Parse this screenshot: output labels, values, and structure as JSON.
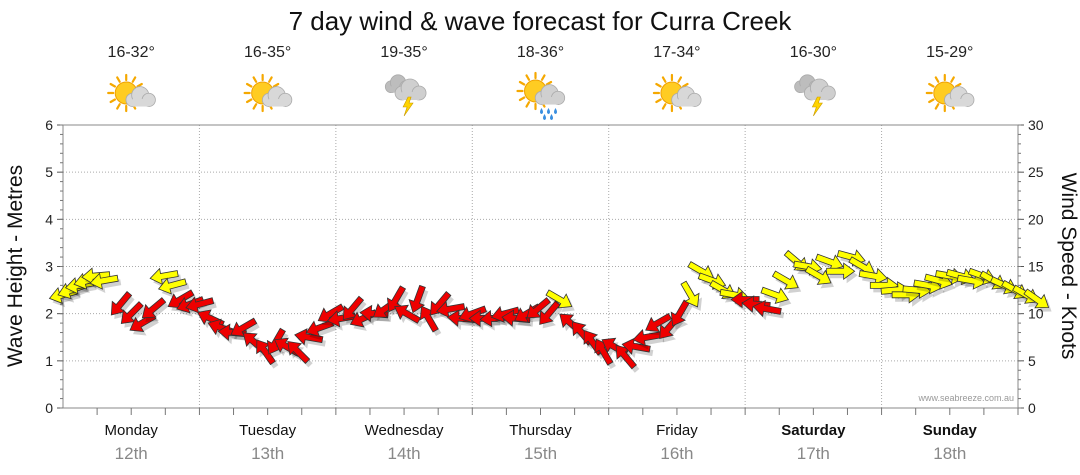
{
  "title": "7 day wind & wave forecast for Curra Creek",
  "credit": "www.seabreeze.com.au",
  "chart_data": {
    "type": "line",
    "title": "7 day wind & wave forecast for Curra Creek",
    "y_left": {
      "label": "Wave Height - Metres",
      "lim": [
        0,
        6
      ],
      "ticks": [
        0,
        1,
        2,
        3,
        4,
        5,
        6
      ]
    },
    "y_right": {
      "label": "Wind Speed - Knots",
      "lim": [
        0,
        30
      ],
      "ticks": [
        0,
        5,
        10,
        15,
        20,
        25,
        30
      ]
    },
    "grid": true,
    "days": [
      {
        "name": "Monday",
        "date": "12th",
        "temp": "16-32°",
        "weather": "partly-cloudy-icon",
        "bold": false
      },
      {
        "name": "Tuesday",
        "date": "13th",
        "temp": "16-35°",
        "weather": "partly-cloudy-icon",
        "bold": false
      },
      {
        "name": "Wednesday",
        "date": "14th",
        "temp": "19-35°",
        "weather": "thunderstorm-icon",
        "bold": false
      },
      {
        "name": "Thursday",
        "date": "15th",
        "temp": "18-36°",
        "weather": "sun-shower-icon",
        "bold": false
      },
      {
        "name": "Friday",
        "date": "16th",
        "temp": "17-34°",
        "weather": "partly-cloudy-icon",
        "bold": false
      },
      {
        "name": "Saturday",
        "date": "17th",
        "temp": "16-30°",
        "weather": "thunderstorm-icon",
        "bold": true
      },
      {
        "name": "Sunday",
        "date": "18th",
        "temp": "15-29°",
        "weather": "partly-cloudy-icon",
        "bold": true
      }
    ],
    "wind_colors": {
      "strong": "#ee0000",
      "moderate": "#ffff00"
    },
    "wind": [
      {
        "day": 0.0,
        "knots": 12.0,
        "dir_deg": 75,
        "color": "moderate"
      },
      {
        "day": 0.06,
        "knots": 12.5,
        "dir_deg": 70,
        "color": "moderate"
      },
      {
        "day": 0.12,
        "knots": 13.0,
        "dir_deg": 80,
        "color": "moderate"
      },
      {
        "day": 0.18,
        "knots": 13.5,
        "dir_deg": 75,
        "color": "moderate"
      },
      {
        "day": 0.24,
        "knots": 14.0,
        "dir_deg": 85,
        "color": "moderate"
      },
      {
        "day": 0.3,
        "knots": 13.5,
        "dir_deg": 80,
        "color": "moderate"
      },
      {
        "day": 0.42,
        "knots": 11.0,
        "dir_deg": 40,
        "color": "strong"
      },
      {
        "day": 0.5,
        "knots": 10.0,
        "dir_deg": 45,
        "color": "strong"
      },
      {
        "day": 0.58,
        "knots": 9.0,
        "dir_deg": 60,
        "color": "strong"
      },
      {
        "day": 0.66,
        "knots": 10.5,
        "dir_deg": 50,
        "color": "strong"
      },
      {
        "day": 0.74,
        "knots": 14.0,
        "dir_deg": 80,
        "color": "moderate"
      },
      {
        "day": 0.8,
        "knots": 13.0,
        "dir_deg": 75,
        "color": "moderate"
      },
      {
        "day": 0.86,
        "knots": 11.5,
        "dir_deg": 60,
        "color": "strong"
      },
      {
        "day": 0.93,
        "knots": 11.0,
        "dir_deg": 70,
        "color": "strong"
      },
      {
        "day": 1.0,
        "knots": 11.0,
        "dir_deg": 75,
        "color": "strong"
      },
      {
        "day": 1.08,
        "knots": 9.5,
        "dir_deg": 115,
        "color": "strong"
      },
      {
        "day": 1.16,
        "knots": 8.5,
        "dir_deg": 110,
        "color": "strong"
      },
      {
        "day": 1.24,
        "knots": 8.0,
        "dir_deg": 95,
        "color": "strong"
      },
      {
        "day": 1.32,
        "knots": 8.5,
        "dir_deg": 60,
        "color": "strong"
      },
      {
        "day": 1.4,
        "knots": 7.0,
        "dir_deg": 130,
        "color": "strong"
      },
      {
        "day": 1.48,
        "knots": 6.0,
        "dir_deg": 145,
        "color": "strong"
      },
      {
        "day": 1.56,
        "knots": 7.0,
        "dir_deg": 30,
        "color": "strong"
      },
      {
        "day": 1.64,
        "knots": 6.5,
        "dir_deg": 120,
        "color": "strong"
      },
      {
        "day": 1.72,
        "knots": 6.0,
        "dir_deg": 135,
        "color": "strong"
      },
      {
        "day": 1.8,
        "knots": 7.5,
        "dir_deg": 100,
        "color": "strong"
      },
      {
        "day": 1.88,
        "knots": 8.5,
        "dir_deg": 70,
        "color": "strong"
      },
      {
        "day": 1.96,
        "knots": 10.0,
        "dir_deg": 60,
        "color": "strong"
      },
      {
        "day": 2.04,
        "knots": 9.5,
        "dir_deg": 80,
        "color": "strong"
      },
      {
        "day": 2.12,
        "knots": 10.5,
        "dir_deg": 40,
        "color": "strong"
      },
      {
        "day": 2.2,
        "knots": 9.5,
        "dir_deg": 65,
        "color": "strong"
      },
      {
        "day": 2.28,
        "knots": 10.0,
        "dir_deg": 95,
        "color": "strong"
      },
      {
        "day": 2.36,
        "knots": 10.5,
        "dir_deg": 55,
        "color": "strong"
      },
      {
        "day": 2.44,
        "knots": 11.5,
        "dir_deg": 30,
        "color": "strong"
      },
      {
        "day": 2.52,
        "knots": 10.0,
        "dir_deg": 120,
        "color": "strong"
      },
      {
        "day": 2.6,
        "knots": 11.5,
        "dir_deg": 20,
        "color": "strong"
      },
      {
        "day": 2.68,
        "knots": 9.5,
        "dir_deg": 150,
        "color": "strong"
      },
      {
        "day": 2.76,
        "knots": 11.0,
        "dir_deg": 40,
        "color": "strong"
      },
      {
        "day": 2.84,
        "knots": 10.5,
        "dir_deg": 80,
        "color": "strong"
      },
      {
        "day": 2.92,
        "knots": 9.5,
        "dir_deg": 95,
        "color": "strong"
      },
      {
        "day": 3.0,
        "knots": 10.0,
        "dir_deg": 70,
        "color": "strong"
      },
      {
        "day": 3.08,
        "knots": 9.5,
        "dir_deg": 90,
        "color": "strong"
      },
      {
        "day": 3.16,
        "knots": 9.5,
        "dir_deg": 85,
        "color": "strong"
      },
      {
        "day": 3.24,
        "knots": 10.0,
        "dir_deg": 75,
        "color": "strong"
      },
      {
        "day": 3.32,
        "knots": 9.5,
        "dir_deg": 95,
        "color": "strong"
      },
      {
        "day": 3.4,
        "knots": 10.0,
        "dir_deg": 60,
        "color": "strong"
      },
      {
        "day": 3.48,
        "knots": 10.5,
        "dir_deg": 50,
        "color": "strong"
      },
      {
        "day": 3.56,
        "knots": 10.0,
        "dir_deg": 40,
        "color": "strong"
      },
      {
        "day": 3.64,
        "knots": 11.5,
        "dir_deg": 300,
        "color": "moderate"
      },
      {
        "day": 3.72,
        "knots": 9.0,
        "dir_deg": 130,
        "color": "strong"
      },
      {
        "day": 3.8,
        "knots": 8.0,
        "dir_deg": 140,
        "color": "strong"
      },
      {
        "day": 3.88,
        "knots": 7.0,
        "dir_deg": 145,
        "color": "strong"
      },
      {
        "day": 3.96,
        "knots": 6.0,
        "dir_deg": 150,
        "color": "strong"
      },
      {
        "day": 4.04,
        "knots": 6.5,
        "dir_deg": 120,
        "color": "strong"
      },
      {
        "day": 4.12,
        "knots": 5.5,
        "dir_deg": 140,
        "color": "strong"
      },
      {
        "day": 4.2,
        "knots": 6.5,
        "dir_deg": 100,
        "color": "strong"
      },
      {
        "day": 4.28,
        "knots": 7.5,
        "dir_deg": 80,
        "color": "strong"
      },
      {
        "day": 4.36,
        "knots": 9.0,
        "dir_deg": 60,
        "color": "strong"
      },
      {
        "day": 4.44,
        "knots": 8.5,
        "dir_deg": 40,
        "color": "strong"
      },
      {
        "day": 4.52,
        "knots": 10.0,
        "dir_deg": 30,
        "color": "strong"
      },
      {
        "day": 4.6,
        "knots": 12.0,
        "dir_deg": 330,
        "color": "moderate"
      },
      {
        "day": 4.68,
        "knots": 14.5,
        "dir_deg": 300,
        "color": "moderate"
      },
      {
        "day": 4.76,
        "knots": 13.5,
        "dir_deg": 290,
        "color": "moderate"
      },
      {
        "day": 4.84,
        "knots": 12.5,
        "dir_deg": 300,
        "color": "moderate"
      },
      {
        "day": 4.92,
        "knots": 12.0,
        "dir_deg": 280,
        "color": "moderate"
      },
      {
        "day": 5.0,
        "knots": 11.5,
        "dir_deg": 90,
        "color": "strong"
      },
      {
        "day": 5.08,
        "knots": 11.0,
        "dir_deg": 95,
        "color": "strong"
      },
      {
        "day": 5.16,
        "knots": 10.5,
        "dir_deg": 100,
        "color": "strong"
      },
      {
        "day": 5.22,
        "knots": 12.0,
        "dir_deg": 290,
        "color": "moderate"
      },
      {
        "day": 5.3,
        "knots": 13.5,
        "dir_deg": 300,
        "color": "moderate"
      },
      {
        "day": 5.38,
        "knots": 15.5,
        "dir_deg": 310,
        "color": "moderate"
      },
      {
        "day": 5.46,
        "knots": 15.0,
        "dir_deg": 280,
        "color": "moderate"
      },
      {
        "day": 5.54,
        "knots": 14.0,
        "dir_deg": 300,
        "color": "moderate"
      },
      {
        "day": 5.62,
        "knots": 15.5,
        "dir_deg": 290,
        "color": "moderate"
      },
      {
        "day": 5.7,
        "knots": 14.5,
        "dir_deg": 270,
        "color": "moderate"
      },
      {
        "day": 5.78,
        "knots": 16.0,
        "dir_deg": 285,
        "color": "moderate"
      },
      {
        "day": 5.86,
        "knots": 15.0,
        "dir_deg": 300,
        "color": "moderate"
      },
      {
        "day": 5.94,
        "knots": 14.0,
        "dir_deg": 280,
        "color": "moderate"
      },
      {
        "day": 6.02,
        "knots": 13.0,
        "dir_deg": 270,
        "color": "moderate"
      },
      {
        "day": 6.1,
        "knots": 12.5,
        "dir_deg": 265,
        "color": "moderate"
      },
      {
        "day": 6.18,
        "knots": 12.0,
        "dir_deg": 270,
        "color": "moderate"
      },
      {
        "day": 6.26,
        "knots": 12.5,
        "dir_deg": 275,
        "color": "moderate"
      },
      {
        "day": 6.34,
        "knots": 13.0,
        "dir_deg": 280,
        "color": "moderate"
      },
      {
        "day": 6.42,
        "knots": 13.5,
        "dir_deg": 285,
        "color": "moderate"
      },
      {
        "day": 6.5,
        "knots": 14.0,
        "dir_deg": 280,
        "color": "moderate"
      },
      {
        "day": 6.58,
        "knots": 14.0,
        "dir_deg": 285,
        "color": "moderate"
      },
      {
        "day": 6.66,
        "knots": 13.5,
        "dir_deg": 280,
        "color": "moderate"
      },
      {
        "day": 6.74,
        "knots": 14.0,
        "dir_deg": 290,
        "color": "moderate"
      },
      {
        "day": 6.82,
        "knots": 13.5,
        "dir_deg": 300,
        "color": "moderate"
      },
      {
        "day": 6.9,
        "knots": 13.0,
        "dir_deg": 295,
        "color": "moderate"
      },
      {
        "day": 6.98,
        "knots": 12.5,
        "dir_deg": 300,
        "color": "moderate"
      },
      {
        "day": 7.06,
        "knots": 12.0,
        "dir_deg": 300,
        "color": "moderate"
      },
      {
        "day": 7.14,
        "knots": 11.5,
        "dir_deg": 305,
        "color": "moderate"
      }
    ]
  }
}
